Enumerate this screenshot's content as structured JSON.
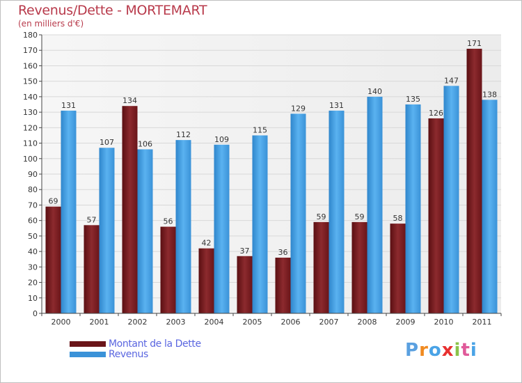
{
  "header": {
    "title": "Revenus/Dette - MORTEMART",
    "subtitle": "(en milliers d'€)"
  },
  "legend": {
    "items": [
      {
        "label": "Montant de la Dette",
        "color": "#7a1e22"
      },
      {
        "label": "Revenus",
        "color": "#4aa3e6"
      }
    ]
  },
  "logo": {
    "text": "Proxiti",
    "colors": [
      "#5aa0e0",
      "#f08a20",
      "#4aa3e6",
      "#e83030",
      "#8bc34a",
      "#e05a9a",
      "#4aa3e6"
    ]
  },
  "chart_data": {
    "type": "bar",
    "title": "Revenus/Dette - MORTEMART",
    "ylabel": "(en milliers d'€)",
    "xlabel": "",
    "ylim": [
      0,
      180
    ],
    "ytick_step": 10,
    "grid": true,
    "categories": [
      "2000",
      "2001",
      "2002",
      "2003",
      "2004",
      "2005",
      "2006",
      "2007",
      "2008",
      "2009",
      "2010",
      "2011"
    ],
    "series": [
      {
        "name": "Montant de la Dette",
        "color": "#7a1e22",
        "values": [
          69,
          57,
          134,
          56,
          42,
          37,
          36,
          59,
          59,
          58,
          126,
          171
        ]
      },
      {
        "name": "Revenus",
        "color": "#4aa3e6",
        "values": [
          131,
          107,
          106,
          112,
          109,
          115,
          129,
          131,
          140,
          135,
          147,
          138
        ]
      }
    ]
  }
}
